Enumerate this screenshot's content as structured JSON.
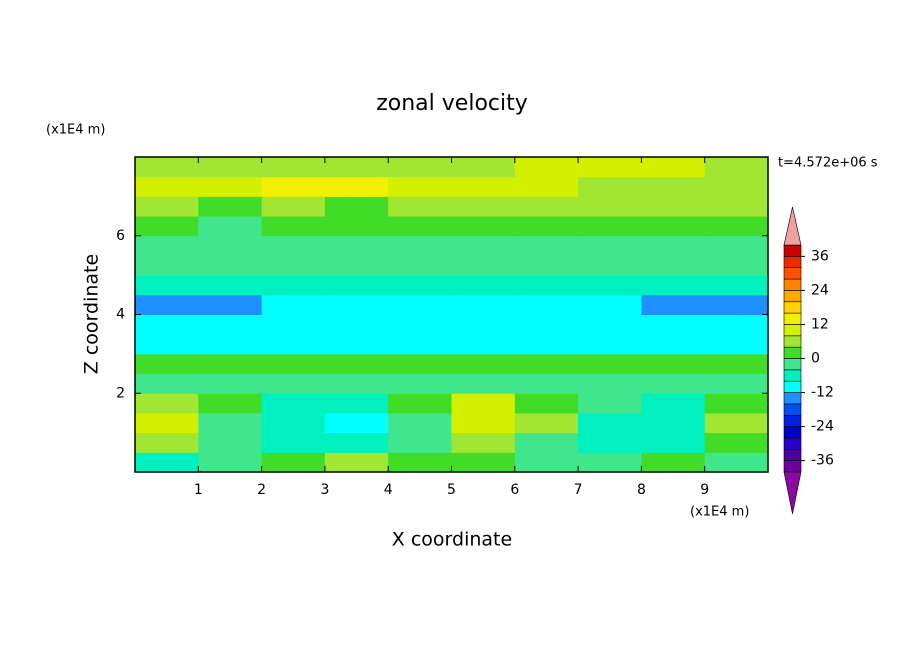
{
  "chart_data": {
    "type": "contour",
    "title": "zonal velocity",
    "xlabel": "X coordinate",
    "ylabel": "Z coordinate",
    "xunit": "(x1E4 m)",
    "yunit": "(x1E4 m)",
    "annotation": "t=4.572e+06 s",
    "xlim": [
      0,
      10
    ],
    "ylim": [
      0,
      8
    ],
    "xticks": [
      1,
      2,
      3,
      4,
      5,
      6,
      7,
      8,
      9
    ],
    "yticks": [
      2,
      4,
      6
    ],
    "x": [
      0.5,
      1.5,
      2.5,
      3.5,
      4.5,
      5.5,
      6.5,
      7.5,
      8.5,
      9.5
    ],
    "z": [
      0.25,
      0.75,
      1.25,
      1.75,
      2.25,
      2.75,
      3.25,
      3.75,
      4.25,
      4.75,
      5.25,
      5.75,
      6.25,
      6.75,
      7.25,
      7.75
    ],
    "values": [
      [
        -8,
        -4,
        2,
        4,
        2,
        0,
        -4,
        -4,
        2,
        -4
      ],
      [
        4,
        -2,
        -6,
        -6,
        -2,
        6,
        -2,
        -6,
        -6,
        2
      ],
      [
        8,
        -2,
        -8,
        -10,
        -4,
        8,
        4,
        -6,
        -8,
        6
      ],
      [
        4,
        0,
        -6,
        -8,
        0,
        8,
        0,
        -4,
        -6,
        0
      ],
      [
        -2,
        -2,
        -2,
        -2,
        -2,
        -2,
        -2,
        -2,
        -2,
        -2
      ],
      [
        2,
        2,
        2,
        2,
        2,
        2,
        2,
        2,
        2,
        2
      ],
      [
        -10,
        -10,
        -10,
        -10,
        -10,
        -10,
        -10,
        -10,
        -10,
        -10
      ],
      [
        -12,
        -12,
        -12,
        -12,
        -12,
        -12,
        -12,
        -12,
        -12,
        -12
      ],
      [
        -16,
        -16,
        -12,
        -12,
        -12,
        -12,
        -12,
        -12,
        -16,
        -16
      ],
      [
        -8,
        -8,
        -8,
        -8,
        -8,
        -8,
        -8,
        -8,
        -8,
        -8
      ],
      [
        -4,
        -4,
        -4,
        -4,
        -4,
        -4,
        -4,
        -4,
        -4,
        -4
      ],
      [
        -2,
        -2,
        -2,
        -2,
        -2,
        -2,
        -2,
        -2,
        -2,
        -2
      ],
      [
        0,
        -2,
        2,
        0,
        2,
        0,
        2,
        0,
        2,
        0
      ],
      [
        4,
        2,
        4,
        2,
        4,
        6,
        4,
        4,
        6,
        4
      ],
      [
        8,
        10,
        12,
        14,
        10,
        8,
        8,
        6,
        6,
        4
      ],
      [
        6,
        6,
        6,
        6,
        6,
        6,
        8,
        8,
        8,
        6
      ]
    ],
    "levels": [
      -40,
      -36,
      -32,
      -28,
      -24,
      -20,
      -16,
      -12,
      -8,
      -4,
      0,
      4,
      8,
      12,
      16,
      20,
      24,
      28,
      32,
      36,
      40
    ],
    "colorbar_ticks": [
      36,
      24,
      12,
      0,
      -12,
      -24,
      -36
    ],
    "colors": [
      "#8a0aa0",
      "#6e00a0",
      "#4b00a0",
      "#2800c8",
      "#0000c8",
      "#0020e6",
      "#0050f0",
      "#1e90ff",
      "#00ffff",
      "#00f0c0",
      "#40e68c",
      "#40dc28",
      "#a0e632",
      "#d2f000",
      "#f0f000",
      "#ffd200",
      "#ffaa00",
      "#ff8200",
      "#ff5000",
      "#f02800",
      "#c80000",
      "#f0a0a0"
    ]
  }
}
